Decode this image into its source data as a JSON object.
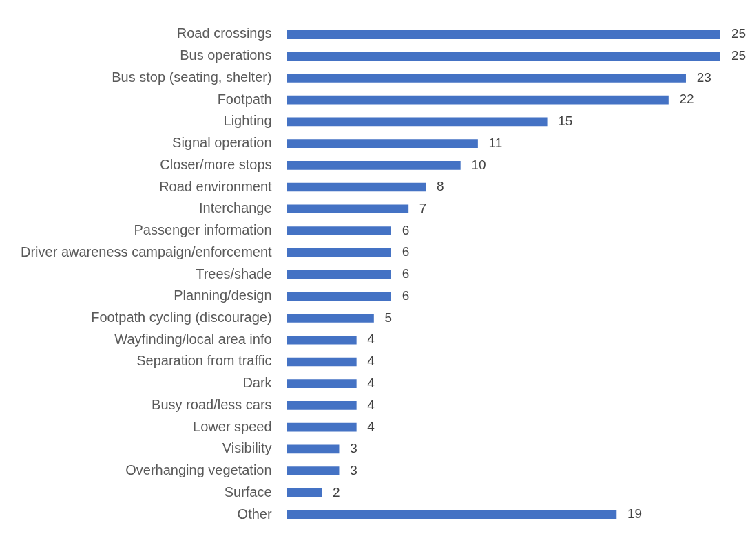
{
  "chart_data": {
    "type": "bar",
    "orientation": "horizontal",
    "categories": [
      "Road crossings",
      "Bus operations",
      "Bus stop (seating, shelter)",
      "Footpath",
      "Lighting",
      "Signal operation",
      "Closer/more stops",
      "Road environment",
      "Interchange",
      "Passenger information",
      "Driver awareness campaign/enforcement",
      "Trees/shade",
      "Planning/design",
      "Footpath cycling (discourage)",
      "Wayfinding/local area info",
      "Separation from traffic",
      "Dark",
      "Busy road/less cars",
      "Lower speed",
      "Visibility",
      "Overhanging vegetation",
      "Surface",
      "Other"
    ],
    "values": [
      25,
      25,
      23,
      22,
      15,
      11,
      10,
      8,
      7,
      6,
      6,
      6,
      6,
      5,
      4,
      4,
      4,
      4,
      4,
      3,
      3,
      2,
      19
    ],
    "color": "#4472c4",
    "data_labels": true,
    "tick_labels": "y"
  }
}
